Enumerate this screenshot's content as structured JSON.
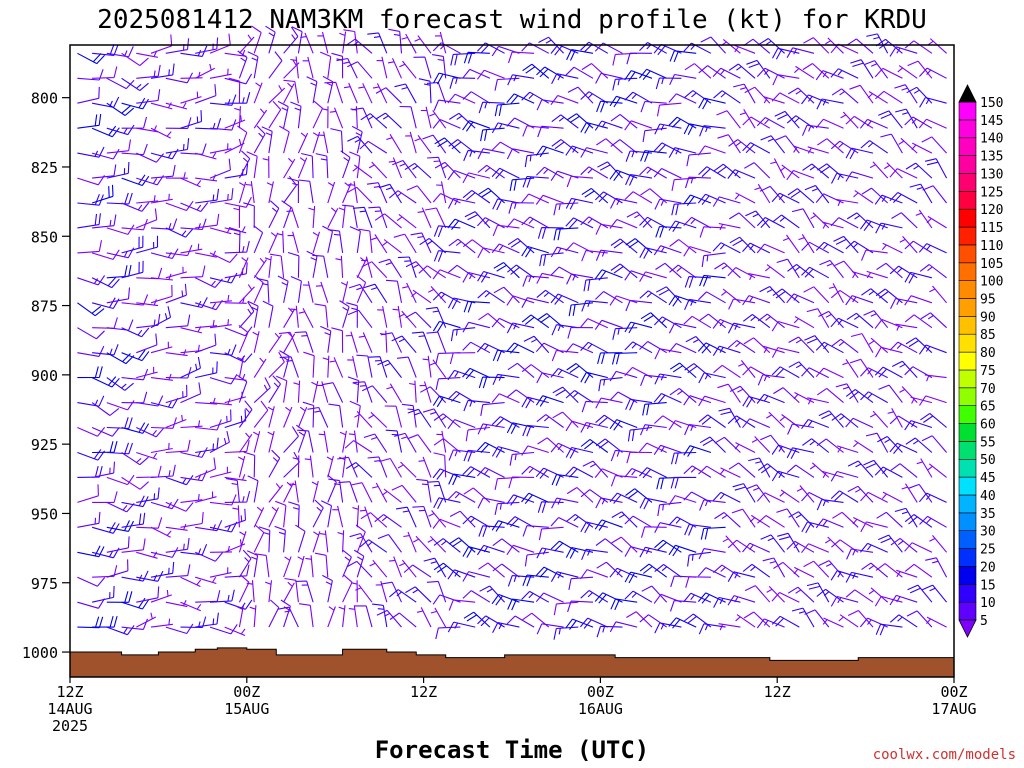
{
  "chart_data": {
    "type": "wind-barb-time-height",
    "title": "2025081412 NAM3KM forecast wind profile (kt) for KRDU",
    "xlabel": "Forecast Time (UTC)",
    "ylabel": "",
    "source": "coolwx.com/models",
    "units": "kt",
    "x_ticks": [
      {
        "hour": 0,
        "line1": "12Z",
        "line2": "14AUG",
        "line3": "2025"
      },
      {
        "hour": 12,
        "line1": "00Z",
        "line2": "15AUG",
        "line3": ""
      },
      {
        "hour": 24,
        "line1": "12Z",
        "line2": "",
        "line3": ""
      },
      {
        "hour": 36,
        "line1": "00Z",
        "line2": "16AUG",
        "line3": ""
      },
      {
        "hour": 48,
        "line1": "12Z",
        "line2": "",
        "line3": ""
      },
      {
        "hour": 60,
        "line1": "00Z",
        "line2": "17AUG",
        "line3": ""
      }
    ],
    "xlim_hours": [
      0,
      60
    ],
    "y_ticks": [
      "800",
      "825",
      "850",
      "875",
      "900",
      "925",
      "950",
      "975",
      "1000"
    ],
    "ylim_hpa": [
      781,
      1009
    ],
    "barb_spacing_hours": 1,
    "barb_spacing_hpa": 9,
    "colorbar_levels": [
      5,
      10,
      15,
      20,
      25,
      30,
      35,
      40,
      45,
      50,
      55,
      60,
      65,
      70,
      75,
      80,
      85,
      90,
      95,
      100,
      105,
      110,
      115,
      120,
      125,
      130,
      135,
      140,
      145,
      150
    ],
    "colorbar_colors": [
      "#8000ff",
      "#6000ff",
      "#3000ff",
      "#0000ee",
      "#0030ff",
      "#0060ff",
      "#0090ff",
      "#00b4ff",
      "#00e0ff",
      "#00e0b0",
      "#00e070",
      "#00e030",
      "#40ff00",
      "#90ff00",
      "#c0ff00",
      "#ffff00",
      "#ffe000",
      "#ffc000",
      "#ffa000",
      "#ff8c00",
      "#ff7000",
      "#ff5000",
      "#ff2000",
      "#ff0000",
      "#ff0040",
      "#ff0070",
      "#ff00a0",
      "#ff00c0",
      "#ff00e0",
      "#ff00ff"
    ],
    "terrain_color": "#a0522d",
    "surface_pressure": [
      {
        "hour": 0,
        "hpa": 1000
      },
      {
        "hour": 3.5,
        "hpa": 1001
      },
      {
        "hour": 6,
        "hpa": 1000
      },
      {
        "hour": 8.5,
        "hpa": 999
      },
      {
        "hour": 10,
        "hpa": 998.5
      },
      {
        "hour": 12,
        "hpa": 999
      },
      {
        "hour": 14,
        "hpa": 1001
      },
      {
        "hour": 18.5,
        "hpa": 999
      },
      {
        "hour": 21.5,
        "hpa": 1000
      },
      {
        "hour": 23.5,
        "hpa": 1001
      },
      {
        "hour": 25.5,
        "hpa": 1002
      },
      {
        "hour": 29.5,
        "hpa": 1001
      },
      {
        "hour": 37,
        "hpa": 1002
      },
      {
        "hour": 47.5,
        "hpa": 1003
      },
      {
        "hour": 53.5,
        "hpa": 1002
      },
      {
        "hour": 60,
        "hpa": 1001
      }
    ],
    "wind_regimes": [
      {
        "hour_start": 0,
        "hour_end": 4,
        "direction_deg": 100,
        "speed_kt": 15
      },
      {
        "hour_start": 4,
        "hour_end": 11,
        "direction_deg": 90,
        "speed_kt": 10
      },
      {
        "hour_start": 11,
        "hour_end": 15,
        "direction_deg": 20,
        "speed_kt": 8
      },
      {
        "hour_start": 15,
        "hour_end": 20,
        "direction_deg": 0,
        "speed_kt": 8
      },
      {
        "hour_start": 20,
        "hour_end": 26,
        "direction_deg": 330,
        "speed_kt": 10
      },
      {
        "hour_start": 26,
        "hour_end": 45,
        "direction_deg": 290,
        "speed_kt": 15
      },
      {
        "hour_start": 45,
        "hour_end": 60,
        "direction_deg": 305,
        "speed_kt": 12
      }
    ]
  }
}
